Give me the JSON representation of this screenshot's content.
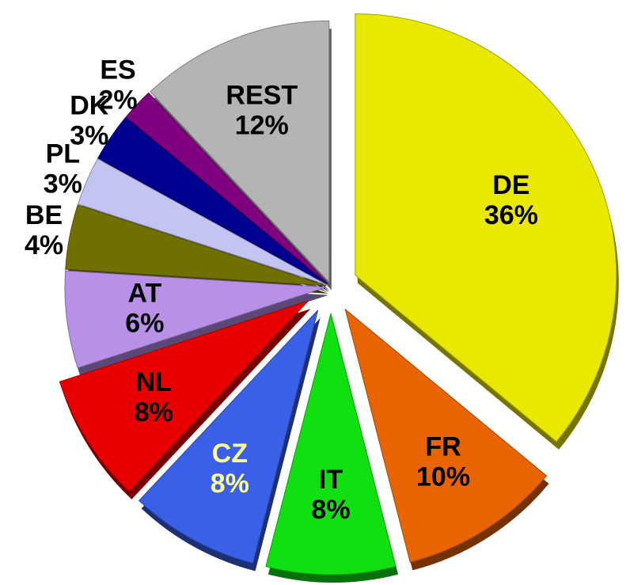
{
  "chart_data": {
    "type": "pie",
    "categories": [
      "DE",
      "FR",
      "IT",
      "CZ",
      "NL",
      "AT",
      "BE",
      "PL",
      "DK",
      "ES",
      "REST"
    ],
    "values": [
      36,
      10,
      8,
      8,
      8,
      6,
      4,
      3,
      3,
      2,
      12
    ],
    "value_labels": [
      "36%",
      "10%",
      "8%",
      "8%",
      "8%",
      "6%",
      "4%",
      "3%",
      "3%",
      "2%",
      "12%"
    ],
    "colors": [
      "#e8e800",
      "#e86400",
      "#10e010",
      "#3a60e8",
      "#e80000",
      "#b890e8",
      "#707000",
      "#c4c4f4",
      "#000090",
      "#800080",
      "#b4b4b4"
    ],
    "label_colors": [
      "#000000",
      "#000000",
      "#000000",
      "#ffff99",
      "#000000",
      "#000000",
      "#000000",
      "#000000",
      "#000000",
      "#000000",
      "#000000"
    ],
    "exploded": [
      true,
      true,
      true,
      true,
      true,
      false,
      false,
      false,
      false,
      false,
      false
    ]
  }
}
